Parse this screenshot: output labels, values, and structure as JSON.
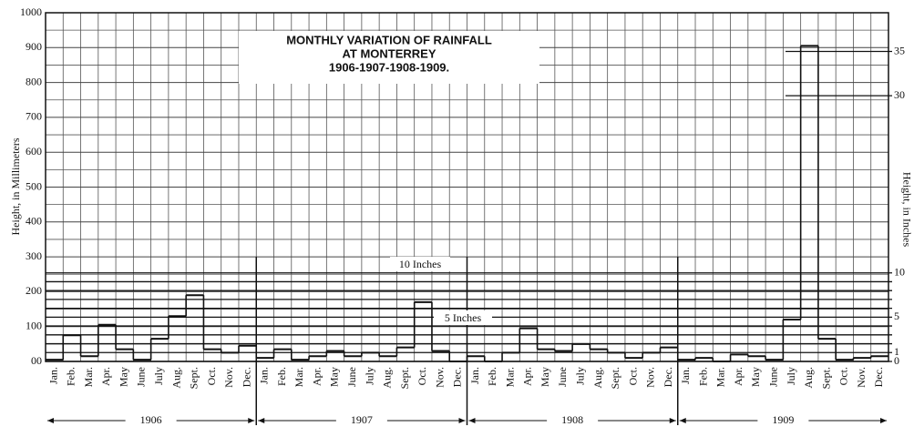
{
  "chart_data": {
    "type": "step",
    "title": [
      "MONTHLY VARIATION OF RAINFALL",
      "AT MONTERREY",
      "1906-1907-1908-1909."
    ],
    "ylabel": "Height, in Millimeters",
    "y2label": "Height, in Inches",
    "annotations": [
      "10 Inches",
      "5 Inches"
    ],
    "years": [
      "1906",
      "1907",
      "1908",
      "1909"
    ],
    "categories": [
      "Jan.",
      "Feb.",
      "Mar.",
      "Apr.",
      "May",
      "June",
      "July",
      "Aug.",
      "Sept.",
      "Oct.",
      "Nov.",
      "Dec.",
      "Jan.",
      "Feb.",
      "Mar.",
      "Apr.",
      "May",
      "June",
      "July",
      "Aug.",
      "Sept.",
      "Oct.",
      "Nov.",
      "Dec.",
      "Jan.",
      "Feb.",
      "Mar.",
      "Apr.",
      "May",
      "June",
      "July",
      "Aug.",
      "Sept.",
      "Oct.",
      "Nov.",
      "Dec.",
      "Jan.",
      "Feb.",
      "Mar.",
      "Apr.",
      "May",
      "June",
      "July",
      "Aug.",
      "Sept.",
      "Oct.",
      "Nov.",
      "Dec."
    ],
    "values": [
      5,
      75,
      15,
      105,
      35,
      5,
      65,
      130,
      190,
      35,
      25,
      45,
      10,
      35,
      5,
      15,
      30,
      15,
      25,
      15,
      40,
      170,
      30,
      0,
      15,
      0,
      25,
      95,
      35,
      30,
      50,
      35,
      25,
      10,
      25,
      40,
      5,
      10,
      0,
      20,
      15,
      5,
      120,
      905,
      65,
      5,
      10,
      15
    ],
    "color": "#111111",
    "ylim": [
      0,
      1000
    ],
    "yticks": [
      {
        "value": 0,
        "label": "00"
      },
      100,
      200,
      300,
      400,
      500,
      600,
      700,
      800,
      900,
      1000
    ],
    "yminor": [
      50,
      150,
      250,
      350,
      450,
      550,
      650,
      750,
      850,
      950
    ],
    "y2lim": [
      0,
      39.37
    ],
    "y2ticks": [
      0,
      1,
      5,
      10,
      30,
      35
    ],
    "y2minor": [
      2,
      3,
      4,
      6,
      7,
      8,
      9
    ],
    "grid": true
  }
}
